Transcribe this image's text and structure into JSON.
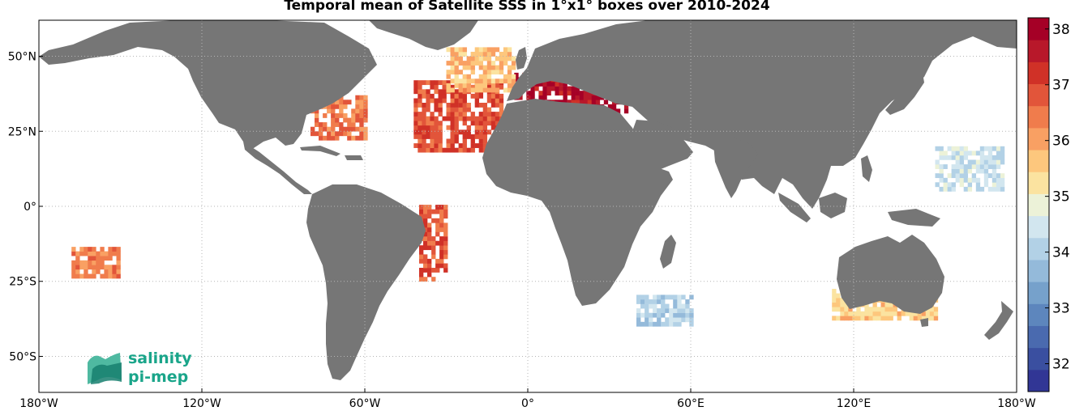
{
  "title": "Temporal mean of Satellite SSS in 1°x1° boxes over 2010-2024",
  "map": {
    "projection": "equirectangular",
    "lon_range": [
      -180,
      180
    ],
    "lat_range": [
      -62,
      62
    ],
    "land_color": "#767676",
    "ocean_background": "#ffffff",
    "grid": "dotted",
    "lon_ticks": [
      {
        "lon": -180,
        "label": "180°W"
      },
      {
        "lon": -120,
        "label": "120°W"
      },
      {
        "lon": -60,
        "label": "60°W"
      },
      {
        "lon": 0,
        "label": "0°"
      },
      {
        "lon": 60,
        "label": "60°E"
      },
      {
        "lon": 120,
        "label": "120°E"
      },
      {
        "lon": 180,
        "label": "180°W"
      }
    ],
    "lat_ticks": [
      {
        "lat": 50,
        "label": "50°N"
      },
      {
        "lat": 25,
        "label": "25°N"
      },
      {
        "lat": 0,
        "label": "0°"
      },
      {
        "lat": -25,
        "label": "25°S"
      },
      {
        "lat": -50,
        "label": "50°S"
      }
    ]
  },
  "colorbar": {
    "min": 31.5,
    "max": 38.2,
    "tick_values": [
      32,
      33,
      34,
      35,
      36,
      37,
      38
    ],
    "tick_labels": [
      "32",
      "33",
      "34",
      "35",
      "36",
      "37",
      "38"
    ],
    "colors": [
      "#313695",
      "#3a4fa0",
      "#4a6aaf",
      "#5d86bd",
      "#76a1cb",
      "#94bada",
      "#b2d1e6",
      "#d2e6ef",
      "#ecf2d8",
      "#fbe3a0",
      "#fdc77d",
      "#f9a063",
      "#f07c4c",
      "#e2553a",
      "#d03127",
      "#b8182a",
      "#a50026"
    ]
  },
  "logo": {
    "line1": "salinity",
    "line2": "pi-mep"
  },
  "chart_data": {
    "type": "heatmap",
    "title": "Temporal mean of Satellite SSS in 1°x1° boxes over 2010-2024",
    "regions": [
      {
        "name_shown": "",
        "lon": [
          -42,
          -10
        ],
        "lat": [
          18,
          42
        ],
        "sss": 36.9
      },
      {
        "name_shown": "",
        "lon": [
          -80,
          -60
        ],
        "lat": [
          22,
          36
        ],
        "sss": 36.5
      },
      {
        "name_shown": "",
        "lon": [
          -5,
          36
        ],
        "lat": [
          31,
          44
        ],
        "sss": 37.8
      },
      {
        "name_shown": "",
        "lon": [
          -40,
          -30
        ],
        "lat": [
          -25,
          0
        ],
        "sss": 36.8
      },
      {
        "name_shown": "",
        "lon": [
          -168,
          -150
        ],
        "lat": [
          -24,
          -14
        ],
        "sss": 36.3
      },
      {
        "name_shown": "",
        "lon": [
          -30,
          -5
        ],
        "lat": [
          38,
          52
        ],
        "sss": 35.7
      },
      {
        "name_shown": "",
        "lon": [
          150,
          175
        ],
        "lat": [
          5,
          20
        ],
        "sss": 34.4
      },
      {
        "name_shown": "",
        "lon": [
          40,
          60
        ],
        "lat": [
          -40,
          -30
        ],
        "sss": 34.0
      },
      {
        "name_shown": "",
        "lon": [
          112,
          150
        ],
        "lat": [
          -38,
          -28
        ],
        "sss": 35.5
      }
    ],
    "value_range": [
      31.5,
      38.2
    ],
    "colorbar_ticks": [
      32,
      33,
      34,
      35,
      36,
      37,
      38
    ]
  }
}
